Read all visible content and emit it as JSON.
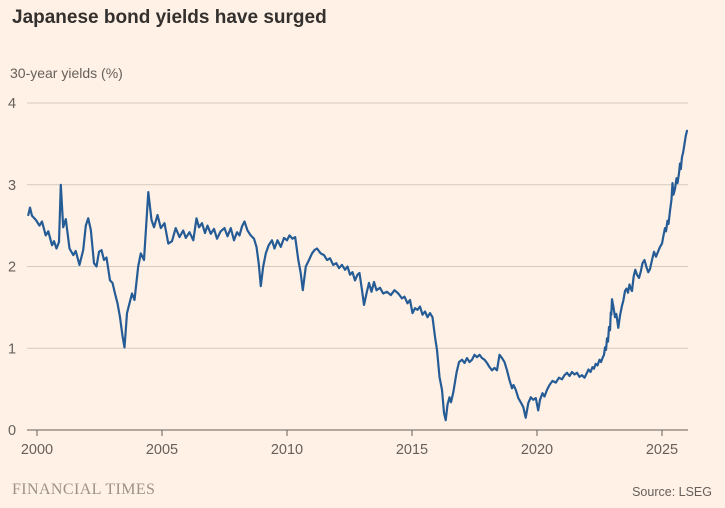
{
  "header": {
    "title": "Japanese bond yields have surged"
  },
  "footer": {
    "brand": "FINANCIAL TIMES",
    "source": "Source: LSEG"
  },
  "colors": {
    "background": "#FFF1E5",
    "line": "#255C96",
    "grid": "#D5C9BD",
    "axis": "#66605C",
    "title": "#33302E",
    "text": "#66605C",
    "brand": "#9C9288"
  },
  "chart_data": {
    "type": "line",
    "title": "Japanese bond yields have surged",
    "ylabel": "30-year yields (%)",
    "xlabel": "",
    "x_ticks": [
      2000,
      2005,
      2010,
      2015,
      2020,
      2025
    ],
    "y_ticks": [
      0,
      1,
      2,
      3,
      4
    ],
    "ylim": [
      0,
      4
    ],
    "xlim": [
      1999.6,
      2026.1
    ],
    "grid": "horizontal-only",
    "legend": "none",
    "source": "Source: LSEG",
    "series": [
      {
        "name": "30-year yields (%)",
        "points": [
          [
            1999.65,
            2.63
          ],
          [
            1999.72,
            2.72
          ],
          [
            1999.8,
            2.62
          ],
          [
            1999.95,
            2.57
          ],
          [
            2000.1,
            2.5
          ],
          [
            2000.2,
            2.55
          ],
          [
            2000.35,
            2.38
          ],
          [
            2000.45,
            2.43
          ],
          [
            2000.6,
            2.26
          ],
          [
            2000.68,
            2.31
          ],
          [
            2000.78,
            2.22
          ],
          [
            2000.88,
            2.3
          ],
          [
            2000.95,
            3.0
          ],
          [
            2001.05,
            2.48
          ],
          [
            2001.15,
            2.58
          ],
          [
            2001.3,
            2.22
          ],
          [
            2001.45,
            2.14
          ],
          [
            2001.55,
            2.19
          ],
          [
            2001.7,
            2.02
          ],
          [
            2001.85,
            2.2
          ],
          [
            2001.95,
            2.5
          ],
          [
            2002.05,
            2.59
          ],
          [
            2002.15,
            2.45
          ],
          [
            2002.28,
            2.04
          ],
          [
            2002.38,
            2.0
          ],
          [
            2002.48,
            2.18
          ],
          [
            2002.58,
            2.2
          ],
          [
            2002.68,
            2.08
          ],
          [
            2002.78,
            2.11
          ],
          [
            2002.92,
            1.83
          ],
          [
            2003.02,
            1.8
          ],
          [
            2003.12,
            1.67
          ],
          [
            2003.22,
            1.55
          ],
          [
            2003.32,
            1.38
          ],
          [
            2003.42,
            1.15
          ],
          [
            2003.5,
            1.01
          ],
          [
            2003.6,
            1.43
          ],
          [
            2003.7,
            1.55
          ],
          [
            2003.8,
            1.67
          ],
          [
            2003.9,
            1.59
          ],
          [
            2004.05,
            2.0
          ],
          [
            2004.15,
            2.16
          ],
          [
            2004.28,
            2.08
          ],
          [
            2004.45,
            2.91
          ],
          [
            2004.58,
            2.57
          ],
          [
            2004.68,
            2.48
          ],
          [
            2004.82,
            2.63
          ],
          [
            2004.95,
            2.47
          ],
          [
            2005.1,
            2.53
          ],
          [
            2005.25,
            2.28
          ],
          [
            2005.4,
            2.31
          ],
          [
            2005.55,
            2.47
          ],
          [
            2005.7,
            2.36
          ],
          [
            2005.85,
            2.44
          ],
          [
            2005.95,
            2.35
          ],
          [
            2006.1,
            2.42
          ],
          [
            2006.25,
            2.32
          ],
          [
            2006.38,
            2.59
          ],
          [
            2006.48,
            2.48
          ],
          [
            2006.6,
            2.53
          ],
          [
            2006.72,
            2.41
          ],
          [
            2006.82,
            2.5
          ],
          [
            2006.95,
            2.4
          ],
          [
            2007.08,
            2.46
          ],
          [
            2007.2,
            2.34
          ],
          [
            2007.35,
            2.43
          ],
          [
            2007.5,
            2.47
          ],
          [
            2007.62,
            2.37
          ],
          [
            2007.75,
            2.47
          ],
          [
            2007.88,
            2.32
          ],
          [
            2008.0,
            2.42
          ],
          [
            2008.1,
            2.38
          ],
          [
            2008.2,
            2.49
          ],
          [
            2008.3,
            2.55
          ],
          [
            2008.42,
            2.44
          ],
          [
            2008.55,
            2.38
          ],
          [
            2008.68,
            2.34
          ],
          [
            2008.78,
            2.24
          ],
          [
            2008.87,
            2.04
          ],
          [
            2008.95,
            1.76
          ],
          [
            2009.05,
            2.0
          ],
          [
            2009.15,
            2.16
          ],
          [
            2009.27,
            2.26
          ],
          [
            2009.4,
            2.32
          ],
          [
            2009.5,
            2.22
          ],
          [
            2009.62,
            2.32
          ],
          [
            2009.75,
            2.24
          ],
          [
            2009.88,
            2.35
          ],
          [
            2010.0,
            2.32
          ],
          [
            2010.1,
            2.38
          ],
          [
            2010.22,
            2.34
          ],
          [
            2010.33,
            2.36
          ],
          [
            2010.45,
            2.08
          ],
          [
            2010.55,
            1.92
          ],
          [
            2010.63,
            1.71
          ],
          [
            2010.75,
            2.0
          ],
          [
            2010.88,
            2.08
          ],
          [
            2011.0,
            2.16
          ],
          [
            2011.1,
            2.2
          ],
          [
            2011.2,
            2.22
          ],
          [
            2011.35,
            2.16
          ],
          [
            2011.48,
            2.14
          ],
          [
            2011.6,
            2.08
          ],
          [
            2011.72,
            2.1
          ],
          [
            2011.85,
            2.02
          ],
          [
            2011.97,
            2.04
          ],
          [
            2012.08,
            1.98
          ],
          [
            2012.2,
            2.02
          ],
          [
            2012.32,
            1.96
          ],
          [
            2012.42,
            2.0
          ],
          [
            2012.52,
            1.9
          ],
          [
            2012.62,
            1.93
          ],
          [
            2012.72,
            1.83
          ],
          [
            2012.82,
            1.9
          ],
          [
            2012.9,
            1.92
          ],
          [
            2013.0,
            1.71
          ],
          [
            2013.08,
            1.53
          ],
          [
            2013.18,
            1.67
          ],
          [
            2013.28,
            1.8
          ],
          [
            2013.38,
            1.69
          ],
          [
            2013.48,
            1.81
          ],
          [
            2013.58,
            1.71
          ],
          [
            2013.72,
            1.74
          ],
          [
            2013.85,
            1.67
          ],
          [
            2014.0,
            1.69
          ],
          [
            2014.15,
            1.65
          ],
          [
            2014.3,
            1.71
          ],
          [
            2014.45,
            1.67
          ],
          [
            2014.6,
            1.61
          ],
          [
            2014.7,
            1.63
          ],
          [
            2014.82,
            1.55
          ],
          [
            2014.92,
            1.59
          ],
          [
            2015.02,
            1.43
          ],
          [
            2015.12,
            1.49
          ],
          [
            2015.22,
            1.47
          ],
          [
            2015.32,
            1.51
          ],
          [
            2015.42,
            1.41
          ],
          [
            2015.52,
            1.45
          ],
          [
            2015.62,
            1.38
          ],
          [
            2015.72,
            1.43
          ],
          [
            2015.82,
            1.38
          ],
          [
            2015.92,
            1.14
          ],
          [
            2016.0,
            0.98
          ],
          [
            2016.1,
            0.65
          ],
          [
            2016.2,
            0.49
          ],
          [
            2016.28,
            0.21
          ],
          [
            2016.35,
            0.12
          ],
          [
            2016.42,
            0.31
          ],
          [
            2016.5,
            0.4
          ],
          [
            2016.56,
            0.34
          ],
          [
            2016.65,
            0.46
          ],
          [
            2016.78,
            0.7
          ],
          [
            2016.88,
            0.83
          ],
          [
            2017.0,
            0.86
          ],
          [
            2017.1,
            0.82
          ],
          [
            2017.2,
            0.88
          ],
          [
            2017.3,
            0.83
          ],
          [
            2017.4,
            0.86
          ],
          [
            2017.5,
            0.92
          ],
          [
            2017.6,
            0.89
          ],
          [
            2017.7,
            0.92
          ],
          [
            2017.8,
            0.88
          ],
          [
            2017.9,
            0.86
          ],
          [
            2018.0,
            0.82
          ],
          [
            2018.1,
            0.77
          ],
          [
            2018.2,
            0.73
          ],
          [
            2018.3,
            0.76
          ],
          [
            2018.4,
            0.73
          ],
          [
            2018.5,
            0.92
          ],
          [
            2018.6,
            0.88
          ],
          [
            2018.7,
            0.83
          ],
          [
            2018.8,
            0.73
          ],
          [
            2018.9,
            0.61
          ],
          [
            2019.0,
            0.51
          ],
          [
            2019.06,
            0.55
          ],
          [
            2019.15,
            0.49
          ],
          [
            2019.25,
            0.39
          ],
          [
            2019.35,
            0.34
          ],
          [
            2019.45,
            0.28
          ],
          [
            2019.55,
            0.15
          ],
          [
            2019.65,
            0.33
          ],
          [
            2019.75,
            0.4
          ],
          [
            2019.85,
            0.37
          ],
          [
            2019.95,
            0.39
          ],
          [
            2020.05,
            0.24
          ],
          [
            2020.12,
            0.37
          ],
          [
            2020.22,
            0.45
          ],
          [
            2020.3,
            0.41
          ],
          [
            2020.4,
            0.49
          ],
          [
            2020.5,
            0.55
          ],
          [
            2020.62,
            0.6
          ],
          [
            2020.75,
            0.58
          ],
          [
            2020.88,
            0.64
          ],
          [
            2021.0,
            0.62
          ],
          [
            2021.1,
            0.67
          ],
          [
            2021.2,
            0.7
          ],
          [
            2021.3,
            0.66
          ],
          [
            2021.4,
            0.71
          ],
          [
            2021.5,
            0.68
          ],
          [
            2021.6,
            0.7
          ],
          [
            2021.7,
            0.65
          ],
          [
            2021.8,
            0.67
          ],
          [
            2021.9,
            0.64
          ],
          [
            2022.0,
            0.7
          ],
          [
            2022.06,
            0.74
          ],
          [
            2022.14,
            0.71
          ],
          [
            2022.22,
            0.77
          ],
          [
            2022.28,
            0.75
          ],
          [
            2022.35,
            0.81
          ],
          [
            2022.42,
            0.79
          ],
          [
            2022.5,
            0.86
          ],
          [
            2022.56,
            0.83
          ],
          [
            2022.62,
            0.88
          ],
          [
            2022.68,
            0.92
          ],
          [
            2022.72,
            1.01
          ],
          [
            2022.76,
            0.98
          ],
          [
            2022.8,
            1.12
          ],
          [
            2022.84,
            1.08
          ],
          [
            2022.88,
            1.26
          ],
          [
            2022.92,
            1.22
          ],
          [
            2022.95,
            1.44
          ],
          [
            2022.97,
            1.41
          ],
          [
            2023.0,
            1.6
          ],
          [
            2023.06,
            1.5
          ],
          [
            2023.12,
            1.38
          ],
          [
            2023.17,
            1.42
          ],
          [
            2023.25,
            1.25
          ],
          [
            2023.32,
            1.4
          ],
          [
            2023.4,
            1.52
          ],
          [
            2023.45,
            1.58
          ],
          [
            2023.52,
            1.7
          ],
          [
            2023.58,
            1.73
          ],
          [
            2023.64,
            1.68
          ],
          [
            2023.7,
            1.78
          ],
          [
            2023.75,
            1.73
          ],
          [
            2023.8,
            1.7
          ],
          [
            2023.87,
            1.88
          ],
          [
            2023.93,
            1.96
          ],
          [
            2024.0,
            1.9
          ],
          [
            2024.08,
            1.86
          ],
          [
            2024.15,
            1.94
          ],
          [
            2024.22,
            2.04
          ],
          [
            2024.3,
            2.08
          ],
          [
            2024.38,
            1.99
          ],
          [
            2024.45,
            1.93
          ],
          [
            2024.52,
            1.97
          ],
          [
            2024.6,
            2.08
          ],
          [
            2024.68,
            2.18
          ],
          [
            2024.76,
            2.12
          ],
          [
            2024.84,
            2.18
          ],
          [
            2024.92,
            2.24
          ],
          [
            2025.0,
            2.28
          ],
          [
            2025.06,
            2.38
          ],
          [
            2025.12,
            2.47
          ],
          [
            2025.16,
            2.43
          ],
          [
            2025.22,
            2.56
          ],
          [
            2025.26,
            2.52
          ],
          [
            2025.32,
            2.68
          ],
          [
            2025.38,
            2.82
          ],
          [
            2025.42,
            3.02
          ],
          [
            2025.46,
            2.88
          ],
          [
            2025.52,
            2.95
          ],
          [
            2025.58,
            3.08
          ],
          [
            2025.62,
            3.02
          ],
          [
            2025.68,
            3.14
          ],
          [
            2025.72,
            3.26
          ],
          [
            2025.75,
            3.19
          ],
          [
            2025.8,
            3.34
          ],
          [
            2025.85,
            3.4
          ],
          [
            2025.9,
            3.5
          ],
          [
            2025.95,
            3.6
          ],
          [
            2026.0,
            3.66
          ]
        ]
      }
    ]
  }
}
